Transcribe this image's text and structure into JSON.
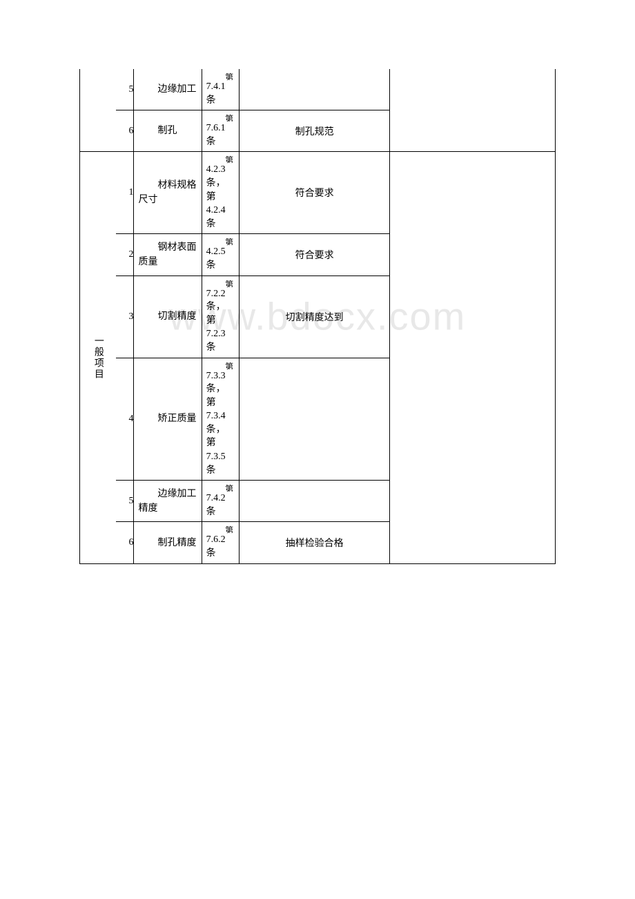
{
  "watermark": "www.bdocx.com",
  "section1": {
    "rows": [
      {
        "num": "5",
        "name": "边缘加工",
        "ref_prefix": "第",
        "ref": "7.4.1条",
        "desc": ""
      },
      {
        "num": "6",
        "name": "制孔",
        "ref_prefix": "第",
        "ref": "7.6.1条",
        "desc": "制孔规范"
      }
    ]
  },
  "section2": {
    "category": "一般项目",
    "rows": [
      {
        "num": "1",
        "name": "材料规格尺寸",
        "ref_prefix": "第",
        "ref": "4.2.3条，第4.2.4条",
        "desc": "符合要求"
      },
      {
        "num": "2",
        "name": "钢材表面质量",
        "ref_prefix": "第",
        "ref": "4.2.5条",
        "desc": "符合要求"
      },
      {
        "num": "3",
        "name": "切割精度",
        "ref_prefix": "第",
        "ref": "7.2.2条，第7.2.3条",
        "desc": "切割精度达到"
      },
      {
        "num": "4",
        "name": "矫正质量",
        "ref_prefix": "第",
        "ref": "7.3.3条，第7.3.4条，第7.3.5条",
        "desc": ""
      },
      {
        "num": "5",
        "name": "边缘加工精度",
        "ref_prefix": "第",
        "ref": "7.4.2条",
        "desc": ""
      },
      {
        "num": "6",
        "name": "制孔精度",
        "ref_prefix": "第",
        "ref": "7.6.2条",
        "desc": "抽样检验合格"
      }
    ]
  },
  "styles": {
    "font_size": 14,
    "border_color": "#000000",
    "background": "#ffffff",
    "text_color": "#000000",
    "watermark_color": "#e8e8e8"
  }
}
